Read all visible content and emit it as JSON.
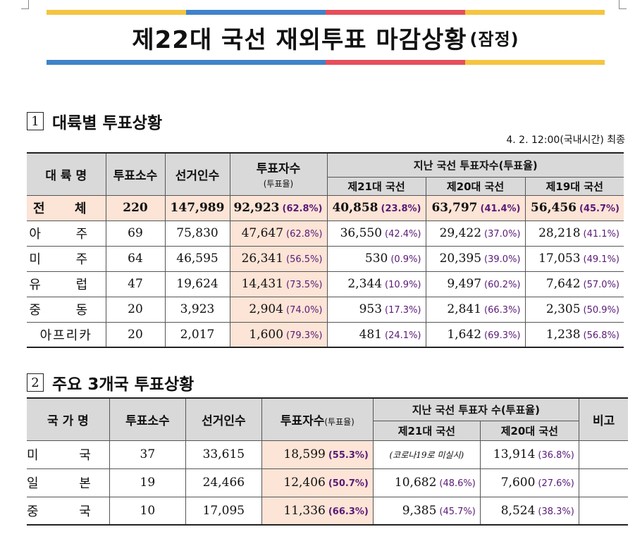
{
  "banner": {
    "title": "제22대 국선 재외투표 마감상황",
    "suffix": "(잠정)",
    "stripe_colors": [
      "#f4c542",
      "#3f83c9",
      "#e64e5b",
      "#f4c542"
    ]
  },
  "section1": {
    "number": "1",
    "heading": "대륙별 투표상황",
    "timestamp": "4. 2. 12:00(국내시간) 최종",
    "headers": {
      "region": "대 륙 명",
      "stations": "투표소수",
      "electors": "선거인수",
      "voters": "투표자수",
      "voters_sub": "(투표율)",
      "past": "지난 국선 투표자수(투표율)",
      "e21": "제21대 국선",
      "e20": "제20대 국선",
      "e19": "제19대 국선"
    },
    "rows": [
      {
        "region": "전 체",
        "stations": "220",
        "electors": "147,989",
        "voters": "92,923",
        "rate": "(62.8%)",
        "e21": "40,858",
        "e21_rate": "(23.8%)",
        "e20": "63,797",
        "e20_rate": "(41.4%)",
        "e19": "56,456",
        "e19_rate": "(45.7%)"
      },
      {
        "region": "아 주",
        "stations": "69",
        "electors": "75,830",
        "voters": "47,647",
        "rate": "(62.8%)",
        "e21": "36,550",
        "e21_rate": "(42.4%)",
        "e20": "29,422",
        "e20_rate": "(37.0%)",
        "e19": "28,218",
        "e19_rate": "(41.1%)"
      },
      {
        "region": "미 주",
        "stations": "64",
        "electors": "46,595",
        "voters": "26,341",
        "rate": "(56.5%)",
        "e21": "530",
        "e21_rate": "(0.9%)",
        "e20": "20,395",
        "e20_rate": "(39.0%)",
        "e19": "17,053",
        "e19_rate": "(49.1%)"
      },
      {
        "region": "유 럽",
        "stations": "47",
        "electors": "19,624",
        "voters": "14,431",
        "rate": "(73.5%)",
        "e21": "2,344",
        "e21_rate": "(10.9%)",
        "e20": "9,497",
        "e20_rate": "(60.2%)",
        "e19": "7,642",
        "e19_rate": "(57.0%)"
      },
      {
        "region": "중 동",
        "stations": "20",
        "electors": "3,923",
        "voters": "2,904",
        "rate": "(74.0%)",
        "e21": "953",
        "e21_rate": "(17.3%)",
        "e20": "2,841",
        "e20_rate": "(66.3%)",
        "e19": "2,305",
        "e19_rate": "(50.9%)"
      },
      {
        "region": "아프리카",
        "stations": "20",
        "electors": "2,017",
        "voters": "1,600",
        "rate": "(79.3%)",
        "e21": "481",
        "e21_rate": "(24.1%)",
        "e20": "1,642",
        "e20_rate": "(69.3%)",
        "e19": "1,238",
        "e19_rate": "(56.8%)"
      }
    ]
  },
  "section2": {
    "number": "2",
    "heading": "주요 3개국 투표상황",
    "headers": {
      "country": "국 가 명",
      "stations": "투표소수",
      "electors": "선거인수",
      "voters": "투표자수",
      "voters_sub": "(투표율)",
      "past": "지난 국선 투표자 수(투표율)",
      "e21": "제21대 국선",
      "e20": "제20대 국선",
      "remarks": "비고"
    },
    "rows": [
      {
        "country": "미 국",
        "stations": "37",
        "electors": "33,615",
        "voters": "18,599",
        "rate": "(55.3%)",
        "e21_note": "(코로나19로 미실시)",
        "e20": "13,914",
        "e20_rate": "(36.8%)",
        "remarks": ""
      },
      {
        "country": "일 본",
        "stations": "19",
        "electors": "24,466",
        "voters": "12,406",
        "rate": "(50.7%)",
        "e21": "10,682",
        "e21_rate": "(48.6%)",
        "e20": "7,600",
        "e20_rate": "(27.6%)",
        "remarks": ""
      },
      {
        "country": "중 국",
        "stations": "10",
        "electors": "17,095",
        "voters": "11,336",
        "rate": "(66.3%)",
        "e21": "9,385",
        "e21_rate": "(45.7%)",
        "e20": "8,524",
        "e20_rate": "(38.3%)",
        "remarks": ""
      }
    ]
  }
}
